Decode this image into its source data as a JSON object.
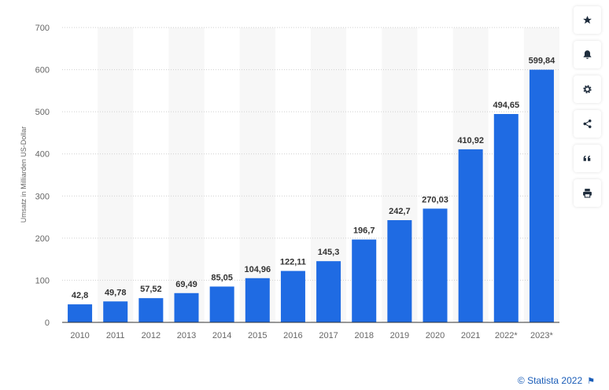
{
  "chart_data": {
    "type": "bar",
    "categories": [
      "2010",
      "2011",
      "2012",
      "2013",
      "2014",
      "2015",
      "2016",
      "2017",
      "2018",
      "2019",
      "2020",
      "2021",
      "2022*",
      "2023*"
    ],
    "values": [
      42.8,
      49.78,
      57.52,
      69.49,
      85.05,
      104.96,
      122.11,
      145.3,
      196.7,
      242.7,
      270.03,
      410.92,
      494.65,
      599.84
    ],
    "value_labels": [
      "42,8",
      "49,78",
      "57,52",
      "69,49",
      "85,05",
      "104,96",
      "122,11",
      "145,3",
      "196,7",
      "242,7",
      "270,03",
      "410,92",
      "494,65",
      "599,84"
    ],
    "ylabel": "Umsatz in Milliarden US-Dollar",
    "xlabel": "",
    "ylim": [
      0,
      700
    ],
    "yticks": [
      0,
      100,
      200,
      300,
      400,
      500,
      600,
      700
    ],
    "grid": true,
    "bar_color": "#1f6be3",
    "band_color": "#f7f7f7"
  },
  "toolbar": {
    "icons": [
      "star-icon",
      "bell-icon",
      "gear-icon",
      "share-icon",
      "quote-icon",
      "print-icon"
    ]
  },
  "credit": {
    "text": "© Statista 2022",
    "flag_icon": "flag-icon"
  }
}
